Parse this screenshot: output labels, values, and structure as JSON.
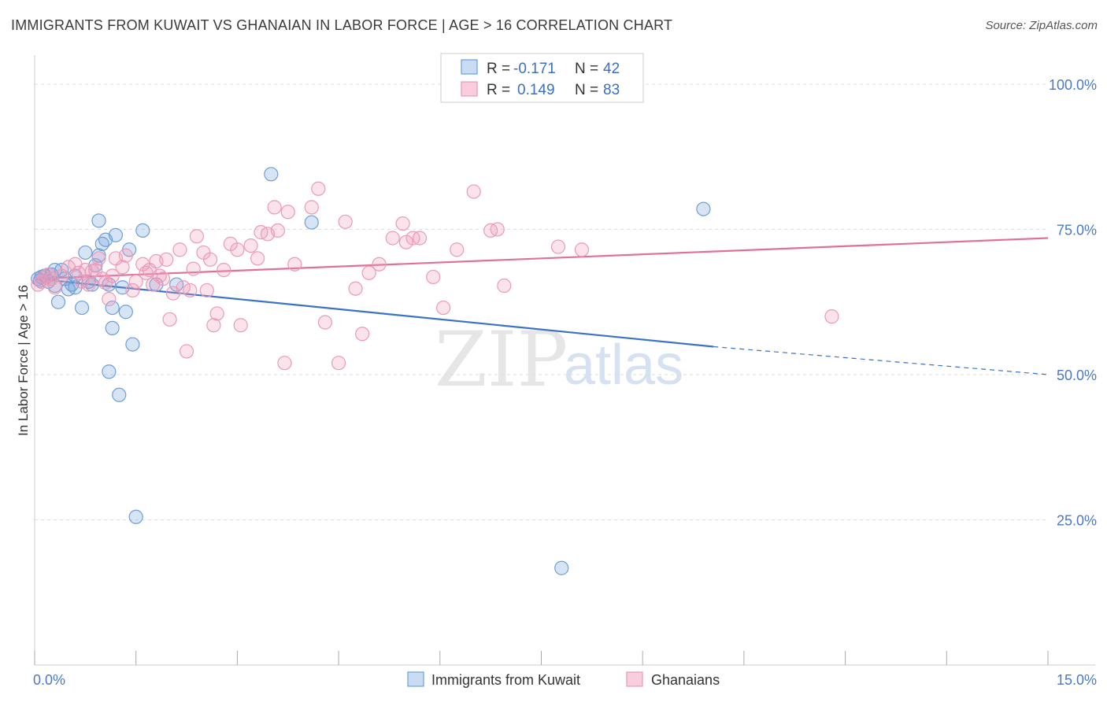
{
  "title": "IMMIGRANTS FROM KUWAIT VS GHANAIAN IN LABOR FORCE | AGE > 16 CORRELATION CHART",
  "source": "Source: ZipAtlas.com",
  "watermark": {
    "zip": "ZIP",
    "atlas": "atlas"
  },
  "colors": {
    "blue": "#6e9fd8",
    "blue_line": "#3a72c8",
    "pink": "#ec9ab8",
    "pink_line": "#e0709a",
    "grid": "#dddddd"
  },
  "legend": {
    "rows": [
      {
        "r_label": "R =",
        "r_value": "-0.171",
        "n_label": "N =",
        "n_value": "42"
      },
      {
        "r_label": "R =",
        "r_value": "0.149",
        "n_label": "N =",
        "n_value": "83"
      }
    ]
  },
  "bottom_legend": [
    "Immigrants from Kuwait",
    "Ghanaians"
  ],
  "chart_data": {
    "type": "scatter",
    "ylabel": "In Labor Force | Age > 16",
    "xlim": [
      0,
      15
    ],
    "ylim": [
      0,
      105
    ],
    "x_tick_labels": [
      "0.0%",
      "15.0%"
    ],
    "y_ticks": [
      25,
      50,
      75,
      100
    ],
    "y_tick_labels": [
      "25.0%",
      "50.0%",
      "75.0%",
      "100.0%"
    ],
    "grid": true,
    "legend_placement": "top-center",
    "series": [
      {
        "name": "Immigrants from Kuwait",
        "points": [
          [
            0.05,
            66.5
          ],
          [
            0.1,
            66.8
          ],
          [
            0.15,
            67
          ],
          [
            0.2,
            66
          ],
          [
            0.25,
            67.2
          ],
          [
            0.3,
            65.3
          ],
          [
            0.35,
            62.5
          ],
          [
            0.4,
            68
          ],
          [
            0.45,
            66.5
          ],
          [
            0.5,
            64.7
          ],
          [
            0.55,
            65.5
          ],
          [
            0.6,
            65
          ],
          [
            0.7,
            61.5
          ],
          [
            0.75,
            71
          ],
          [
            0.8,
            66
          ],
          [
            0.85,
            65.5
          ],
          [
            0.95,
            70.5
          ],
          [
            0.95,
            76.5
          ],
          [
            1.0,
            72.5
          ],
          [
            1.05,
            73.2
          ],
          [
            1.1,
            65.5
          ],
          [
            1.15,
            58
          ],
          [
            1.15,
            61.5
          ],
          [
            1.2,
            74
          ],
          [
            1.25,
            46.5
          ],
          [
            1.3,
            65
          ],
          [
            1.35,
            60.8
          ],
          [
            1.4,
            71.5
          ],
          [
            1.45,
            55.2
          ],
          [
            1.5,
            25.5
          ],
          [
            1.6,
            74.8
          ],
          [
            1.8,
            65.5
          ],
          [
            2.1,
            65.5
          ],
          [
            3.5,
            84.5
          ],
          [
            4.1,
            76.2
          ],
          [
            7.8,
            16.7
          ],
          [
            9.9,
            78.5
          ],
          [
            0.9,
            68.8
          ],
          [
            0.3,
            68
          ],
          [
            1.1,
            50.5
          ],
          [
            0.08,
            66.2
          ],
          [
            0.6,
            67
          ]
        ]
      },
      {
        "name": "Ghanaians",
        "points": [
          [
            0.05,
            65.5
          ],
          [
            0.1,
            66
          ],
          [
            0.15,
            66.8
          ],
          [
            0.2,
            67.2
          ],
          [
            0.25,
            66.5
          ],
          [
            0.3,
            65
          ],
          [
            0.4,
            67
          ],
          [
            0.5,
            68.5
          ],
          [
            0.6,
            69
          ],
          [
            0.65,
            67.5
          ],
          [
            0.7,
            66
          ],
          [
            0.75,
            68
          ],
          [
            0.8,
            65.5
          ],
          [
            0.85,
            67.8
          ],
          [
            0.9,
            68
          ],
          [
            0.95,
            70
          ],
          [
            1.0,
            66.5
          ],
          [
            1.05,
            65.8
          ],
          [
            1.1,
            63
          ],
          [
            1.15,
            67
          ],
          [
            1.2,
            70
          ],
          [
            1.3,
            68.5
          ],
          [
            1.35,
            70.5
          ],
          [
            1.45,
            64.5
          ],
          [
            1.5,
            66
          ],
          [
            1.6,
            69
          ],
          [
            1.65,
            67.5
          ],
          [
            1.7,
            68
          ],
          [
            1.75,
            65.5
          ],
          [
            1.8,
            69.5
          ],
          [
            1.85,
            67
          ],
          [
            1.9,
            66.5
          ],
          [
            1.95,
            69.8
          ],
          [
            2.0,
            59.5
          ],
          [
            2.05,
            64
          ],
          [
            2.15,
            71.5
          ],
          [
            2.2,
            65
          ],
          [
            2.25,
            54
          ],
          [
            2.3,
            64.5
          ],
          [
            2.35,
            68.2
          ],
          [
            2.4,
            73.8
          ],
          [
            2.5,
            71
          ],
          [
            2.55,
            64.5
          ],
          [
            2.6,
            69.8
          ],
          [
            2.65,
            58.5
          ],
          [
            2.7,
            60.5
          ],
          [
            2.8,
            68
          ],
          [
            2.9,
            72.5
          ],
          [
            3.0,
            71.5
          ],
          [
            3.05,
            58.5
          ],
          [
            3.2,
            72.2
          ],
          [
            3.3,
            70
          ],
          [
            3.35,
            74.5
          ],
          [
            3.45,
            74.2
          ],
          [
            3.55,
            78.8
          ],
          [
            3.6,
            74.8
          ],
          [
            3.7,
            52
          ],
          [
            3.75,
            78
          ],
          [
            3.85,
            69
          ],
          [
            4.1,
            78.8
          ],
          [
            4.2,
            82
          ],
          [
            4.3,
            59
          ],
          [
            4.5,
            52
          ],
          [
            4.6,
            76.3
          ],
          [
            4.75,
            64.8
          ],
          [
            4.85,
            57
          ],
          [
            4.95,
            67.5
          ],
          [
            5.1,
            69
          ],
          [
            5.3,
            73.5
          ],
          [
            5.45,
            76
          ],
          [
            5.5,
            72.8
          ],
          [
            5.6,
            73.5
          ],
          [
            5.7,
            73.5
          ],
          [
            5.9,
            66.8
          ],
          [
            6.05,
            61.5
          ],
          [
            6.25,
            71.5
          ],
          [
            6.5,
            81.5
          ],
          [
            6.75,
            74.8
          ],
          [
            6.85,
            75
          ],
          [
            6.95,
            65.3
          ],
          [
            7.75,
            72
          ],
          [
            8.1,
            71.5
          ],
          [
            11.8,
            60
          ]
        ]
      }
    ],
    "trend_lines": [
      {
        "series": "Immigrants from Kuwait",
        "solid": [
          [
            0,
            66.5
          ],
          [
            10.05,
            54.8
          ]
        ],
        "dashed": [
          [
            10.05,
            54.8
          ],
          [
            15,
            50
          ]
        ]
      },
      {
        "series": "Ghanaians",
        "solid": [
          [
            0,
            66.5
          ],
          [
            15,
            73.5
          ]
        ]
      }
    ]
  }
}
